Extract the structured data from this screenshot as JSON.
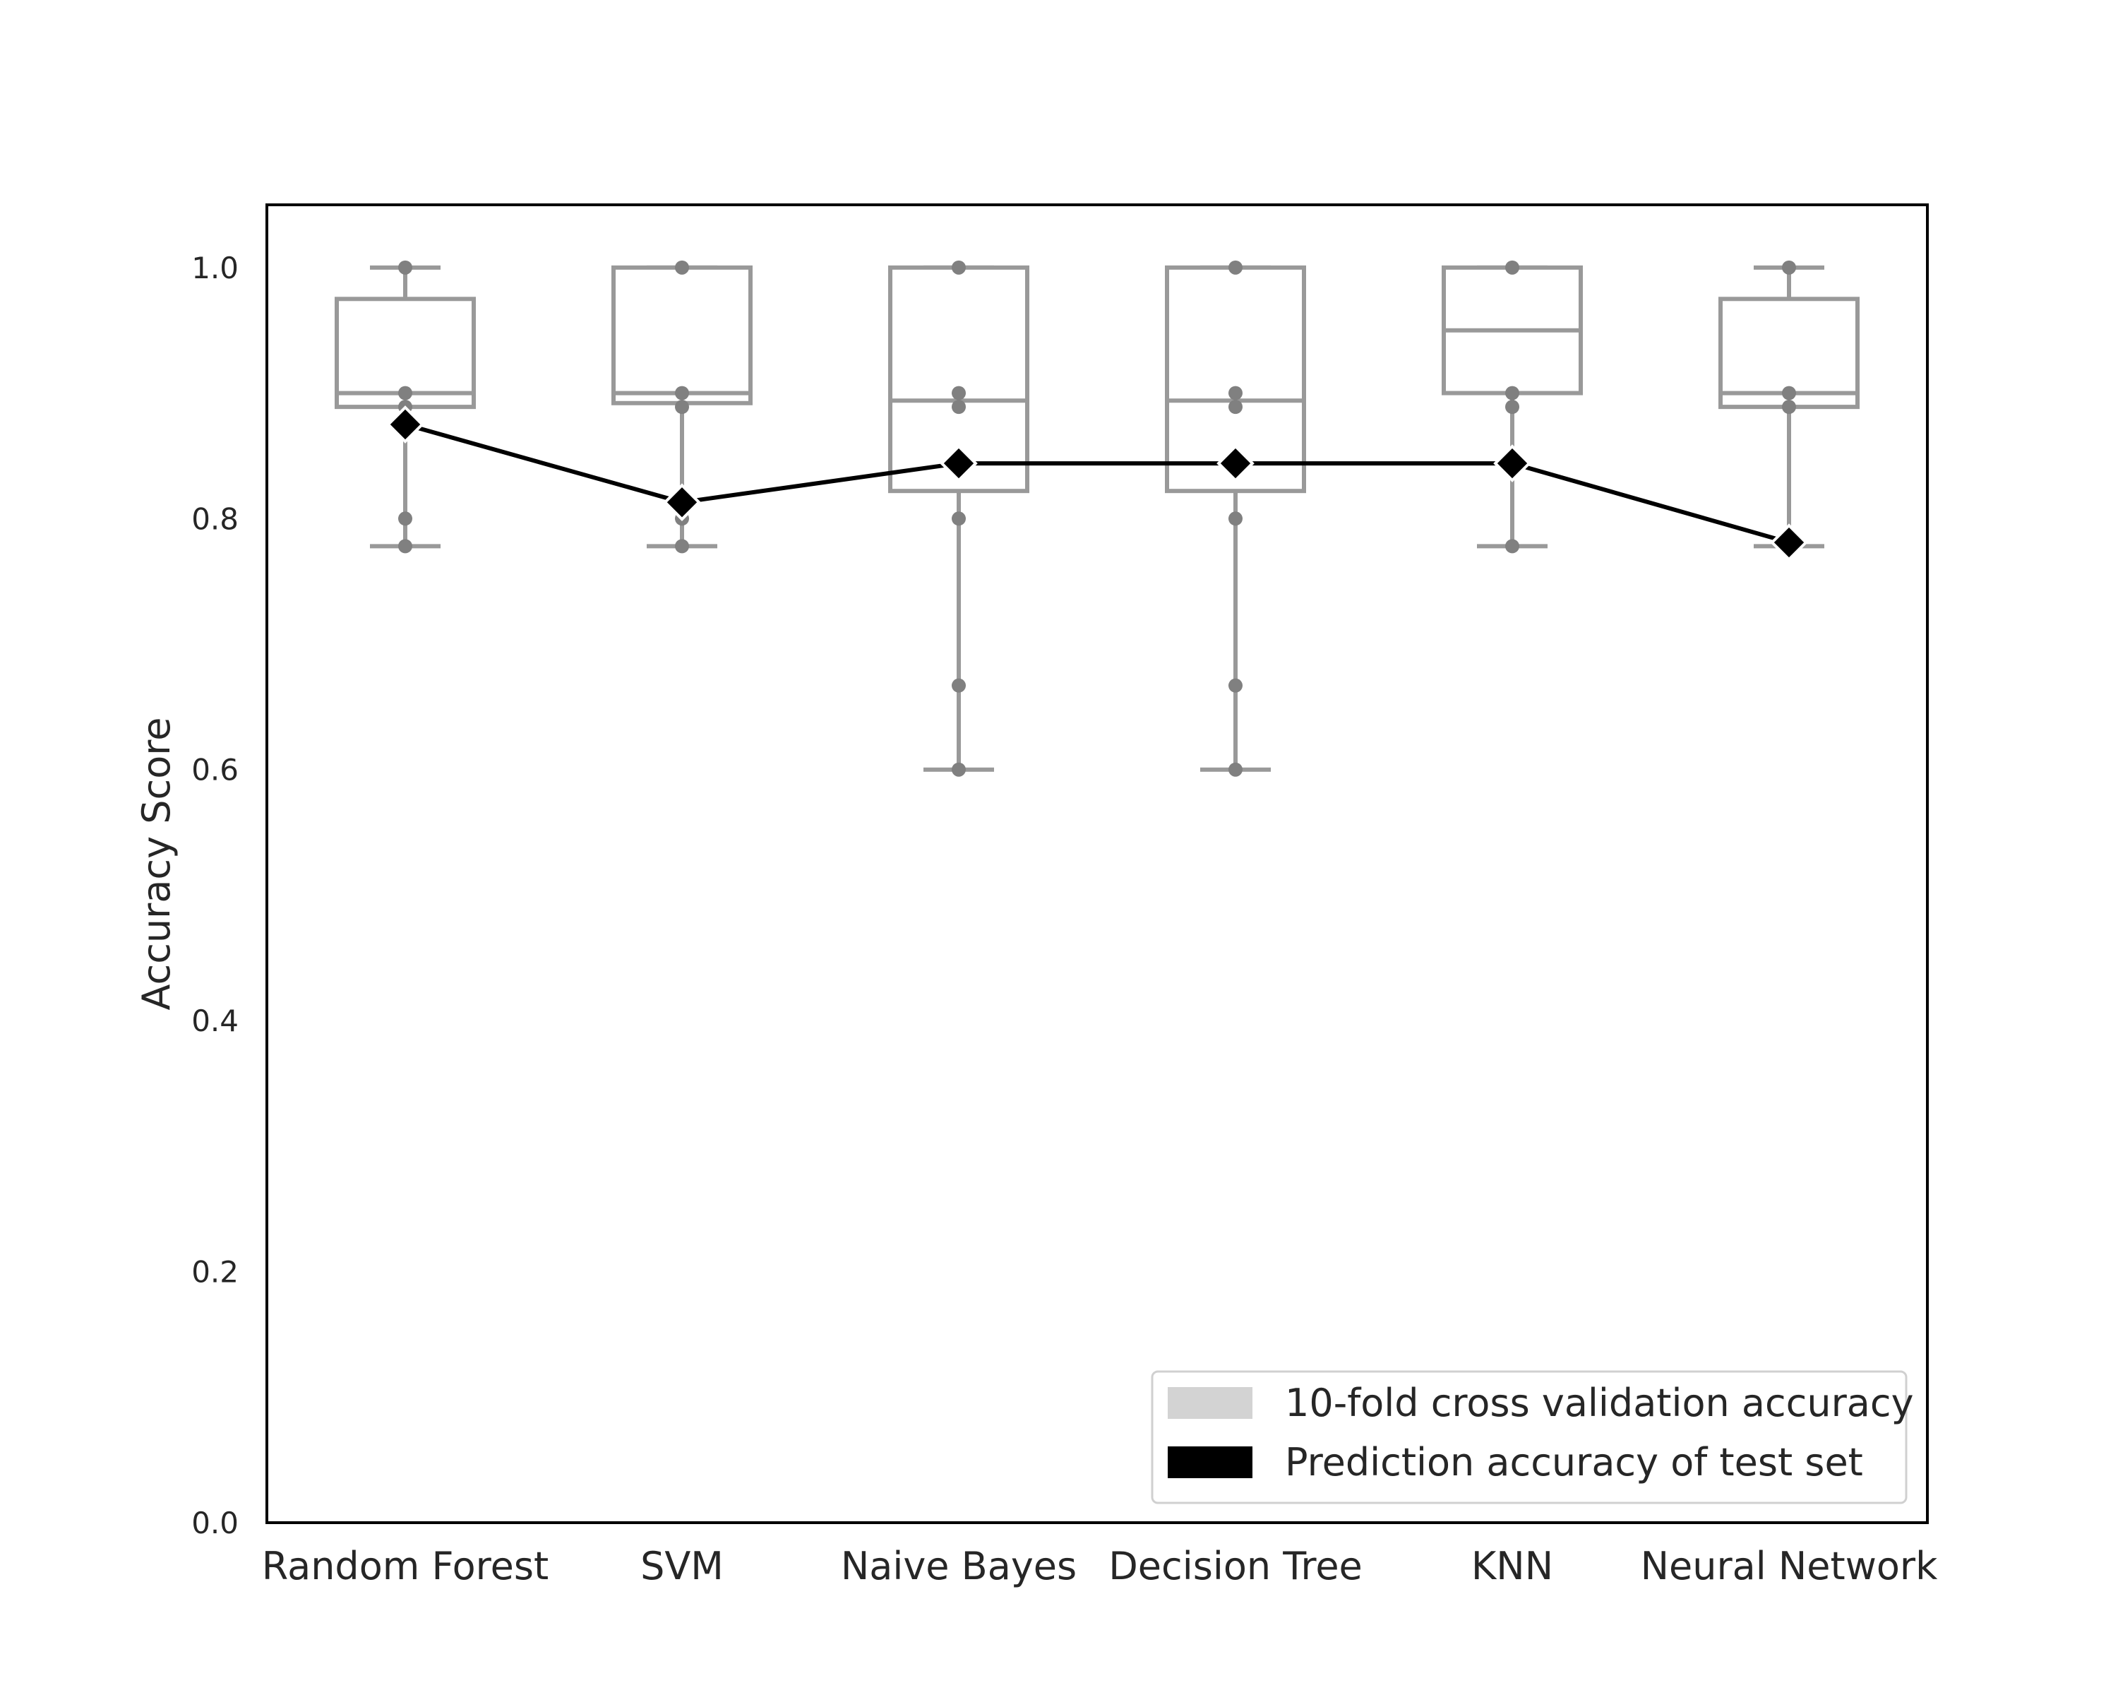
{
  "chart_data": {
    "type": "box",
    "title": "",
    "xlabel": "",
    "ylabel": "Accuracy Score",
    "ylim": [
      0.0,
      1.05
    ],
    "yticks": [
      "0.0",
      "0.2",
      "0.4",
      "0.6",
      "0.8",
      "1.0"
    ],
    "grid": false,
    "legend_position": "lower-right",
    "categories": [
      "Random Forest",
      "SVM",
      "Naive Bayes",
      "Decision Tree",
      "KNN",
      "Neural Network"
    ],
    "series": [
      {
        "name": "10-fold cross validation accuracy",
        "kind": "box",
        "color": "#999999",
        "legend_color": "#d3d3d3",
        "boxes": [
          {
            "whisker_low": 0.778,
            "q1": 0.889,
            "median": 0.9,
            "q3": 0.975,
            "whisker_high": 1.0,
            "points": [
              0.778,
              0.8,
              0.889,
              0.9,
              1.0
            ]
          },
          {
            "whisker_low": 0.778,
            "q1": 0.892,
            "median": 0.9,
            "q3": 1.0,
            "whisker_high": 1.0,
            "points": [
              0.778,
              0.8,
              0.889,
              0.9,
              1.0
            ]
          },
          {
            "whisker_low": 0.6,
            "q1": 0.822,
            "median": 0.894,
            "q3": 1.0,
            "whisker_high": 1.0,
            "points": [
              0.6,
              0.667,
              0.8,
              0.889,
              0.9,
              1.0
            ]
          },
          {
            "whisker_low": 0.6,
            "q1": 0.822,
            "median": 0.894,
            "q3": 1.0,
            "whisker_high": 1.0,
            "points": [
              0.6,
              0.667,
              0.8,
              0.889,
              0.9,
              1.0
            ]
          },
          {
            "whisker_low": 0.778,
            "q1": 0.9,
            "median": 0.95,
            "q3": 1.0,
            "whisker_high": 1.0,
            "points": [
              0.778,
              0.889,
              0.9,
              1.0
            ]
          },
          {
            "whisker_low": 0.778,
            "q1": 0.889,
            "median": 0.9,
            "q3": 0.975,
            "whisker_high": 1.0,
            "points": [
              0.778,
              0.889,
              0.9,
              1.0
            ]
          }
        ]
      },
      {
        "name": "Prediction accuracy of test set",
        "kind": "line",
        "color": "#000000",
        "values": [
          0.875,
          0.813,
          0.844,
          0.844,
          0.844,
          0.781
        ]
      }
    ]
  }
}
